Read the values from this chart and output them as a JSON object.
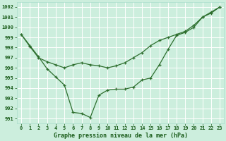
{
  "bg_color": "#cceedd",
  "grid_color": "#aaddcc",
  "line_color": "#2d6e2d",
  "title": "Graphe pression niveau de la mer (hPa)",
  "ylim": [
    990.5,
    1002.5
  ],
  "yticks": [
    991,
    992,
    993,
    994,
    995,
    996,
    997,
    998,
    999,
    1000,
    1001,
    1002
  ],
  "xticks": [
    0,
    1,
    2,
    3,
    4,
    5,
    6,
    7,
    8,
    9,
    10,
    11,
    12,
    13,
    14,
    15,
    16,
    17,
    18,
    19,
    20,
    21,
    22,
    23
  ],
  "line1_x": [
    0,
    1,
    2,
    3,
    4,
    5,
    6,
    7,
    8,
    9,
    10,
    11,
    12,
    13,
    14,
    15,
    16,
    17,
    18,
    19,
    20,
    21,
    22,
    23
  ],
  "line1_y": [
    999.3,
    998.1,
    997.0,
    996.6,
    996.3,
    996.0,
    996.3,
    996.5,
    996.3,
    996.2,
    996.0,
    996.2,
    996.5,
    997.0,
    997.5,
    998.2,
    998.7,
    999.0,
    999.3,
    999.6,
    1000.2,
    1001.0,
    1001.4,
    1002.0
  ],
  "line2_x": [
    0,
    1,
    2,
    3,
    4,
    5,
    6,
    7,
    8,
    9,
    10,
    11,
    12,
    13,
    14,
    15,
    16,
    17,
    18,
    19,
    20,
    21,
    22,
    23
  ],
  "line2_y": [
    999.3,
    998.2,
    997.1,
    995.9,
    995.1,
    994.3,
    991.6,
    991.5,
    991.1,
    993.3,
    993.8,
    993.9,
    993.9,
    994.1,
    994.8,
    995.0,
    996.3,
    997.8,
    999.2,
    999.5,
    1000.0,
    1001.0,
    1001.5,
    1002.0
  ]
}
